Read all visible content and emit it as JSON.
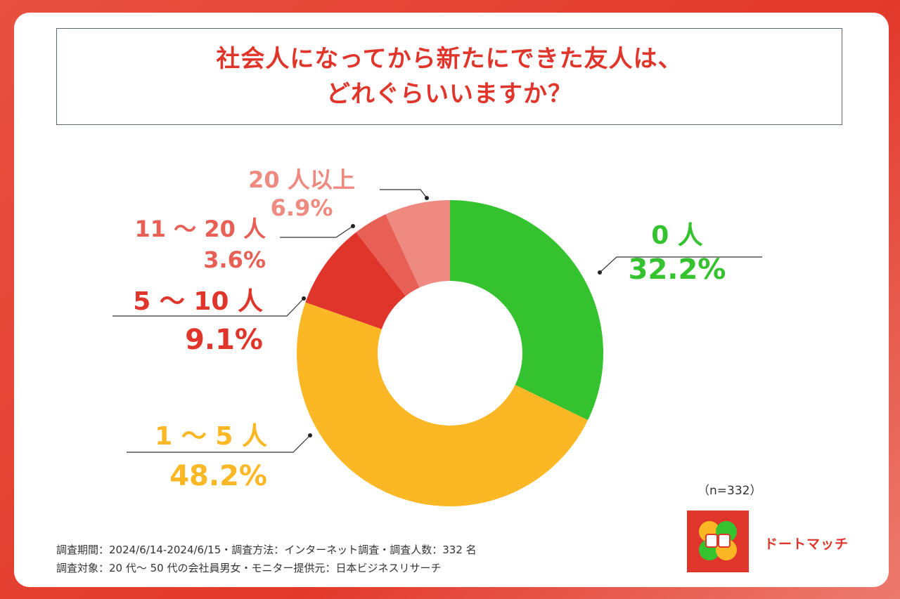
{
  "title": {
    "line1": "社会人になってから新たにできた友人は、",
    "line2": "どれぐらいいますか？"
  },
  "chart_data": {
    "type": "pie",
    "donut": true,
    "categories": [
      "0 人",
      "1 〜 5 人",
      "5 〜 10 人",
      "11 〜 20 人",
      "20 人以上"
    ],
    "values": [
      32.2,
      48.2,
      9.1,
      3.6,
      6.9
    ],
    "value_labels": [
      "32.2%",
      "48.2%",
      "9.1%",
      "3.6%",
      "6.9%"
    ],
    "colors": [
      "#34c22e",
      "#fbb724",
      "#e0352b",
      "#e85f55",
      "#ef8a80"
    ]
  },
  "sample_note": "（n=332）",
  "footer": {
    "line1": "調査期間：2024/6/14-2024/6/15・調査方法：インターネット調査・調査人数：332 名",
    "line2": "調査対象：20 代〜 50 代の会社員男女・モニター提供元：日本ビジネスリサーチ"
  },
  "brand": {
    "name": "ドートマッチ",
    "logo_icon": "clover-hands-logo-icon"
  }
}
